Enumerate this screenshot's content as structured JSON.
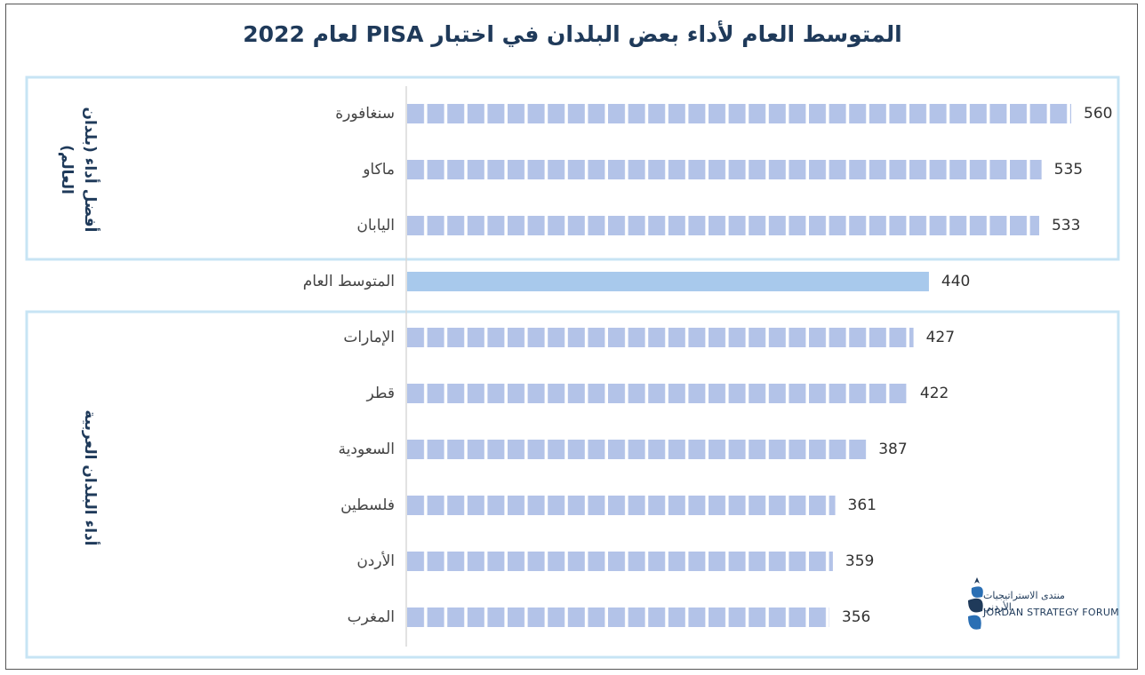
{
  "chart_data": {
    "type": "pictogram-bar",
    "title": "المتوسط العام لأداء بعض البلدان في اختبار PISA لعام 2022",
    "groups": [
      {
        "label": "أفضل أداء (بلدان العالم)",
        "categories": [
          "سنغافورة",
          "ماكاو",
          "اليابان"
        ],
        "values": [
          560,
          535,
          533
        ],
        "color": "#b3c3e8",
        "style": "segmented"
      },
      {
        "categories": [
          "المتوسط العام"
        ],
        "values": [
          440
        ],
        "color": "#a8c9ec",
        "style": "solid"
      },
      {
        "label": "أداء البلدان العربية",
        "categories": [
          "الإمارات",
          "قطر",
          "السعودية",
          "فلسطين",
          "الأردن",
          "المغرب"
        ],
        "values": [
          427,
          422,
          387,
          361,
          359,
          356
        ],
        "color": "#b3c3e8",
        "style": "segmented"
      }
    ]
  },
  "logo": {
    "name_ar": "منتدى الاستراتيجيات الأردني",
    "name_en": "JORDAN STRATEGY FORUM"
  }
}
